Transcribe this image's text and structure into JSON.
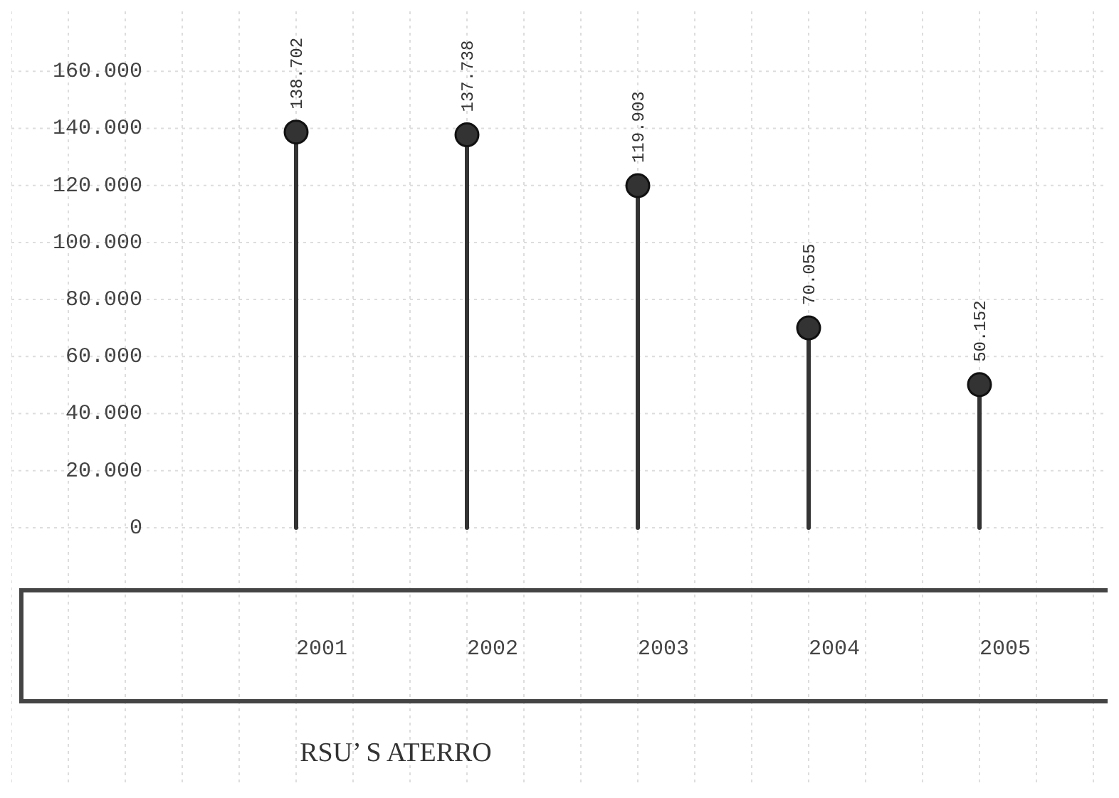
{
  "chart_data": {
    "type": "lollipop",
    "xlabel": "RSU’ S ATERRO",
    "categories": [
      "2001",
      "2002",
      "2003",
      "2004",
      "2005"
    ],
    "values": [
      138702,
      137738,
      119903,
      70055,
      50152
    ],
    "value_labels": [
      "138.702",
      "137.738",
      "119.903",
      "70.055",
      "50.152"
    ],
    "color": "#333333",
    "marker": "circle",
    "grid": true,
    "ylim": [
      0,
      180000
    ],
    "yticks": [
      {
        "value": 0,
        "label": "0"
      },
      {
        "value": 20000,
        "label": "20.000"
      },
      {
        "value": 40000,
        "label": "40.000"
      },
      {
        "value": 60000,
        "label": "60.000"
      },
      {
        "value": 80000,
        "label": "80.000"
      },
      {
        "value": 100000,
        "label": "100.000"
      },
      {
        "value": 120000,
        "label": "120.000"
      },
      {
        "value": 140000,
        "label": "140.000"
      },
      {
        "value": 160000,
        "label": "160.000"
      }
    ]
  }
}
